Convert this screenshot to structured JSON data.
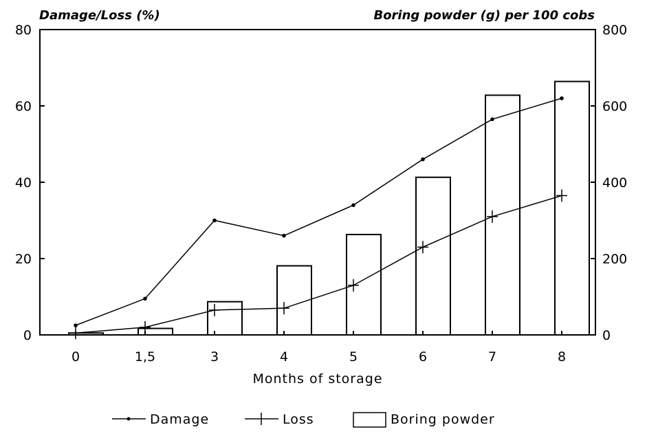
{
  "chart_data": {
    "type": "bar",
    "categories": [
      "0",
      "1,5",
      "3",
      "4",
      "5",
      "6",
      "7",
      "8"
    ],
    "left_axis": {
      "label": "Damage/Loss (%)",
      "ylim": [
        0,
        80
      ],
      "ticks": [
        "0",
        "20",
        "40",
        "60",
        "80"
      ]
    },
    "right_axis": {
      "label": "Boring powder (g) per 100 cobs",
      "ylim": [
        0,
        800
      ],
      "ticks": [
        "0",
        "200",
        "400",
        "600",
        "800"
      ]
    },
    "xlabel": "Months of storage",
    "series": [
      {
        "name": "Damage",
        "type": "line",
        "marker": "dot",
        "axis": "left",
        "values": [
          2.5,
          9.5,
          30,
          26,
          34,
          46,
          56.5,
          62
        ]
      },
      {
        "name": "Loss",
        "type": "line",
        "marker": "plus",
        "axis": "left",
        "values": [
          0.5,
          2,
          6.5,
          7,
          13,
          23,
          31,
          36.5
        ]
      },
      {
        "name": "Boring powder",
        "type": "bar",
        "axis": "right",
        "values": [
          5,
          17,
          87,
          181,
          263,
          413,
          628,
          664
        ]
      }
    ],
    "legend_position": "bottom",
    "grid": false
  },
  "legend": {
    "damage_label": "Damage",
    "loss_label": "Loss",
    "boring_label": "Boring powder"
  },
  "colors": {
    "ink": "#000000",
    "background": "#ffffff"
  }
}
